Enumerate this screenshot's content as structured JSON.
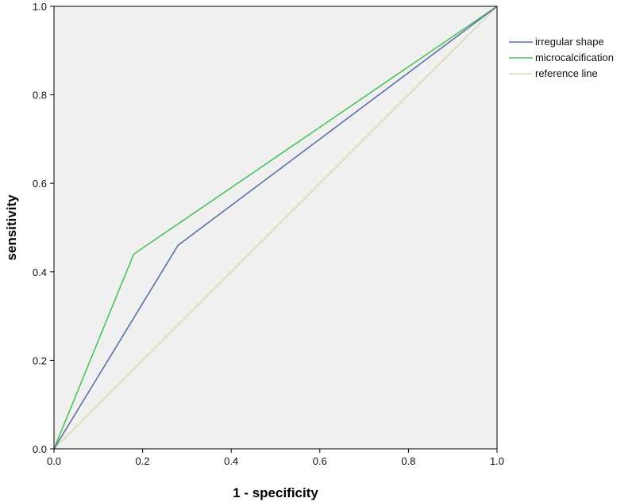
{
  "chart_data": {
    "type": "line",
    "title": "",
    "xlabel": "1 - specificity",
    "ylabel": "sensitivity",
    "xlim": [
      0,
      1
    ],
    "ylim": [
      0,
      1
    ],
    "x_ticks": [
      "0.0",
      "0.2",
      "0.4",
      "0.6",
      "0.8",
      "1.0"
    ],
    "y_ticks": [
      "0.0",
      "0.2",
      "0.4",
      "0.6",
      "0.8",
      "1.0"
    ],
    "grid": false,
    "background_color": "#f0f0f0",
    "legend_position": "right",
    "series": [
      {
        "name": "irregular shape",
        "color": "#5b6fa8",
        "x": [
          0,
          0.28,
          1
        ],
        "y": [
          0,
          0.46,
          1
        ]
      },
      {
        "name": "microcalcification",
        "color": "#4cc35a",
        "x": [
          0,
          0.18,
          1
        ],
        "y": [
          0,
          0.44,
          1
        ]
      },
      {
        "name": "reference line",
        "color": "#d8dcb4",
        "x": [
          0,
          1
        ],
        "y": [
          0,
          1
        ]
      }
    ]
  }
}
